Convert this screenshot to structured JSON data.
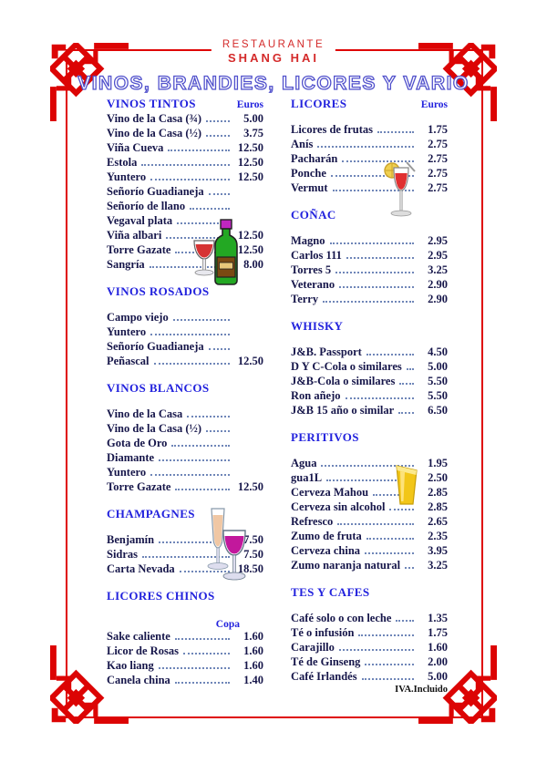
{
  "header": {
    "line1": "RESTAURANTE",
    "line2": "SHANG HAI"
  },
  "title": "VINOS, BRANDIES, LICORES Y VARIO",
  "footer": {
    "note": "IVA.Incluido"
  },
  "colors": {
    "accent_red": "#df0404",
    "header_blue": "#2222dd",
    "title_outline": "#5151cc",
    "text_navy": "#16164a"
  },
  "icons": {
    "cliparts": [
      "wine-bottle-and-glass",
      "champagne-glasses",
      "cocktail-glass",
      "beer-glass"
    ],
    "corners": "chinese-knot-ornament"
  },
  "columns": {
    "left": [
      {
        "title": "VINOS TINTOS",
        "unit": "Euros",
        "unit_position": "header",
        "compact": true,
        "items": [
          {
            "label": "Vino de la Casa (¾)",
            "price": "5.00"
          },
          {
            "label": "Vino de la Casa  (½)",
            "price": "3.75"
          },
          {
            "label": "Viña Cueva",
            "price": "12.50"
          },
          {
            "label": "Estola",
            "price": "12.50"
          },
          {
            "label": "Yuntero",
            "price": "12.50"
          },
          {
            "label": "Señorío Guadianeja",
            "price": ""
          },
          {
            "label": "Señorío de llano",
            "price": ""
          },
          {
            "label": "Vegaval plata",
            "price": ""
          },
          {
            "label": "Viña albari",
            "price": "12.50"
          },
          {
            "label": "Torre Gazate",
            "price": "12.50"
          },
          {
            "label": "Sangría",
            "price": "8.00"
          }
        ]
      },
      {
        "title": "VINOS ROSADOS",
        "items": [
          {
            "label": "Campo viejo",
            "price": ""
          },
          {
            "label": "Yuntero",
            "price": ""
          },
          {
            "label": "Señorío Guadianeja",
            "price": ""
          },
          {
            "label": "Peñascal",
            "price": "12.50"
          }
        ]
      },
      {
        "title": "VINOS BLANCOS",
        "items": [
          {
            "label": "Vino de la Casa",
            "price": ""
          },
          {
            "label": "Vino de la Casa (½)",
            "price": ""
          },
          {
            "label": "Gota de Oro",
            "price": ""
          },
          {
            "label": "Diamante",
            "price": ""
          },
          {
            "label": "Yuntero",
            "price": ""
          },
          {
            "label": "Torre Gazate",
            "price": "12.50"
          }
        ]
      },
      {
        "title": "CHAMPAGNES",
        "items": [
          {
            "label": "Benjamín",
            "price": "7.50"
          },
          {
            "label": "Sidras",
            "price": "7.50"
          },
          {
            "label": "Carta Nevada",
            "price": "18.50"
          }
        ]
      },
      {
        "title": "LICORES CHINOS",
        "unit": "Copa",
        "unit_position": "own-line",
        "items": [
          {
            "label": "Sake caliente",
            "price": "1.60"
          },
          {
            "label": "Licor de Rosas",
            "price": "1.60"
          },
          {
            "label": "Kao liang",
            "price": "1.60"
          },
          {
            "label": "Canela china",
            "price": "1.40"
          }
        ]
      }
    ],
    "right": [
      {
        "title": "LICORES",
        "unit": "Euros",
        "unit_position": "header",
        "items": [
          {
            "label": "Licores de frutas",
            "price": "1.75"
          },
          {
            "label": "Anís",
            "price": "2.75"
          },
          {
            "label": "Pacharán",
            "price": "2.75"
          },
          {
            "label": "Ponche",
            "price": "2.75"
          },
          {
            "label": "Vermut",
            "price": "2.75"
          }
        ]
      },
      {
        "title": "COÑAC",
        "items": [
          {
            "label": "Magno",
            "price": "2.95"
          },
          {
            "label": "Carlos 111",
            "price": "2.95"
          },
          {
            "label": "Torres 5",
            "price": "3.25"
          },
          {
            "label": "Veterano",
            "price": "2.90"
          },
          {
            "label": "Terry",
            "price": "2.90"
          }
        ]
      },
      {
        "title": "WHISKY",
        "items": [
          {
            "label": "J&B. Passport",
            "price": "4.50"
          },
          {
            "label": "D Y C-Cola o similares",
            "price": "5.00"
          },
          {
            "label": "J&B-Cola o similares",
            "price": "5.50"
          },
          {
            "label": "Ron añejo",
            "price": "5.50"
          },
          {
            "label": "J&B 15 año o similar",
            "price": "6.50"
          }
        ]
      },
      {
        "title": "PERITIVOS",
        "items": [
          {
            "label": "Agua",
            "price": "1.95"
          },
          {
            "label": "gua1L",
            "price": "2.50"
          },
          {
            "label": "Cerveza Mahou",
            "price": "2.85"
          },
          {
            "label": "Cerveza sin alcohol",
            "price": "2.85"
          },
          {
            "label": "Refresco",
            "price": "2.65"
          },
          {
            "label": "Zumo de fruta",
            "price": "2.35"
          },
          {
            "label": "Cerveza china",
            "price": "3.95"
          },
          {
            "label": "Zumo naranja natural",
            "price": "3.25"
          }
        ]
      },
      {
        "title": "TES Y CAFES",
        "items": [
          {
            "label": "Café solo o con leche",
            "price": "1.35"
          },
          {
            "label": "Té o infusión",
            "price": "1.75"
          },
          {
            "label": "Carajillo",
            "price": "1.60"
          },
          {
            "label": "Té de Ginseng",
            "price": "2.00"
          },
          {
            "label": "Café Irlandés",
            "price": "5.00"
          }
        ]
      }
    ]
  }
}
